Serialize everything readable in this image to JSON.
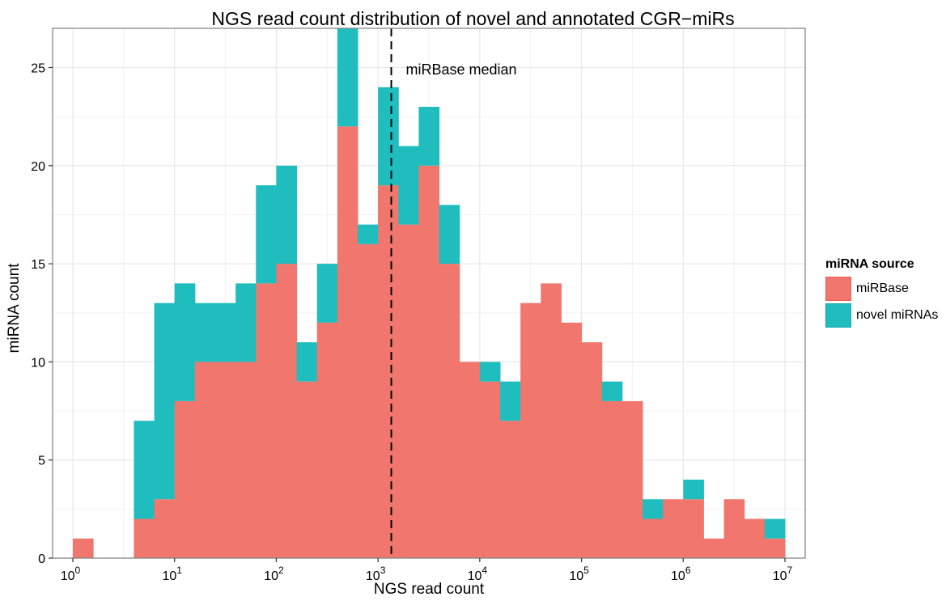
{
  "chart_data": {
    "type": "bar",
    "stacked": true,
    "title": "NGS read count distribution of novel and annotated CGR−miRs",
    "xlabel": "NGS read count",
    "ylabel": "miRNA count",
    "x_scale": "log10",
    "xlim": [
      1,
      10000000
    ],
    "ylim": [
      0,
      27
    ],
    "x_ticks": [
      "10",
      "10",
      "10",
      "10",
      "10",
      "10",
      "10",
      "10"
    ],
    "x_tick_exponents": [
      "0",
      "1",
      "2",
      "3",
      "4",
      "5",
      "6",
      "7"
    ],
    "y_ticks": [
      "0",
      "5",
      "10",
      "15",
      "20",
      "25"
    ],
    "grid": true,
    "bin_width_log10": 0.2,
    "bin_start_log10": 0,
    "series": [
      {
        "name": "miRBase",
        "color": "#F1766D",
        "values": [
          1,
          0,
          0,
          2,
          3,
          8,
          10,
          10,
          10,
          14,
          15,
          9,
          12,
          22,
          16,
          19,
          17,
          20,
          15,
          10,
          9,
          7,
          13,
          14,
          12,
          11,
          8,
          8,
          2,
          3,
          3,
          1,
          3,
          2,
          1
        ]
      },
      {
        "name": "novel miRNAs",
        "color": "#1FBDBE",
        "values": [
          0,
          0,
          0,
          5,
          10,
          6,
          3,
          3,
          4,
          5,
          5,
          2,
          3,
          5,
          1,
          5,
          4,
          3,
          3,
          0,
          1,
          2,
          0,
          0,
          0,
          0,
          1,
          0,
          1,
          0,
          1,
          0,
          0,
          0,
          1
        ]
      }
    ],
    "reference_line": {
      "x": 1350,
      "style": "dashed",
      "label": "miRBase median"
    }
  },
  "legend": {
    "title": "miRNA source",
    "items": [
      {
        "label": "miRBase",
        "color": "#F1766D",
        "border": "#E85E56"
      },
      {
        "label": "novel miRNAs",
        "color": "#1FBDBE",
        "border": "#12A9AA"
      }
    ]
  },
  "colors": {
    "panel_bg": "#ffffff",
    "grid": "#E8E8E8",
    "panel_border": "#7F7F7F"
  }
}
